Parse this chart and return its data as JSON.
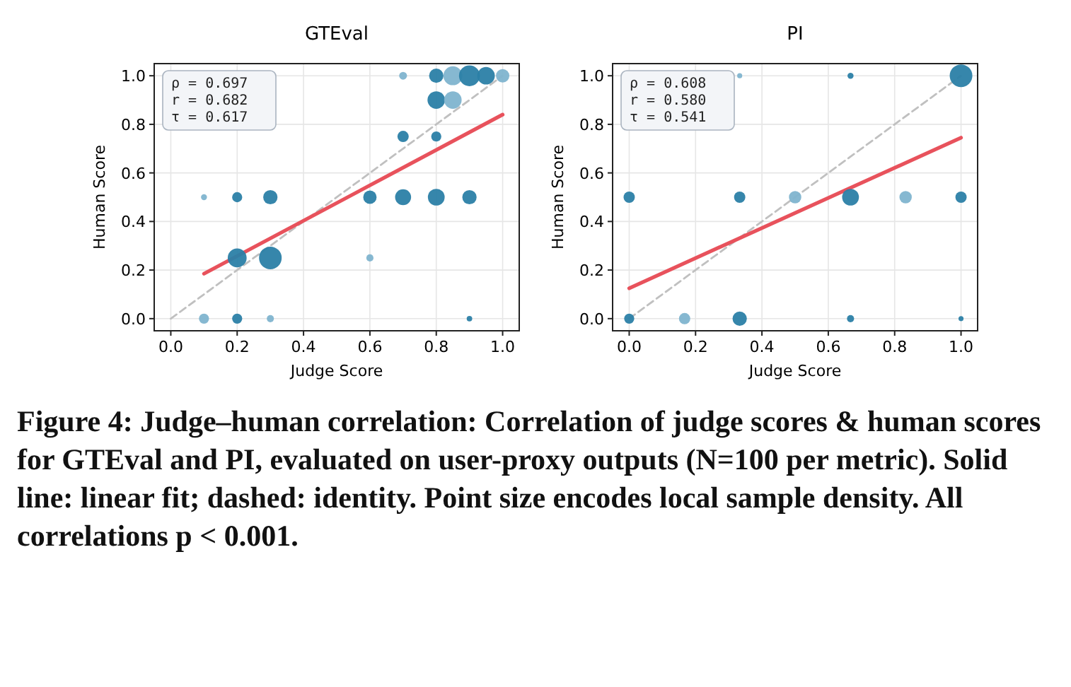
{
  "chart_data": [
    {
      "type": "bubble",
      "title": "GTEval",
      "xlabel": "Judge Score",
      "ylabel": "Human Score",
      "xlim": [
        -0.05,
        1.05
      ],
      "ylim": [
        -0.05,
        1.05
      ],
      "xticks": [
        {
          "value": 0,
          "label": "0.0"
        },
        {
          "value": 0.2,
          "label": "0.2"
        },
        {
          "value": 0.4,
          "label": "0.4"
        },
        {
          "value": 0.6,
          "label": "0.6"
        },
        {
          "value": 0.8,
          "label": "0.8"
        },
        {
          "value": 1,
          "label": "1.0"
        }
      ],
      "yticks": [
        {
          "value": 0,
          "label": "0.0"
        },
        {
          "value": 0.2,
          "label": "0.2"
        },
        {
          "value": 0.4,
          "label": "0.4"
        },
        {
          "value": 0.6,
          "label": "0.6"
        },
        {
          "value": 0.8,
          "label": "0.8"
        },
        {
          "value": 1,
          "label": "1.0"
        }
      ],
      "grid": true,
      "series": [
        {
          "type": "bubble",
          "x": [
            0.1,
            0.2,
            0.3,
            0.9,
            0.1,
            0.2,
            0.3,
            0.6,
            0.7,
            0.8,
            0.9,
            0.2,
            0.3,
            0.6,
            0.7,
            0.8,
            0.8,
            0.85,
            0.7,
            0.8,
            0.85,
            0.9,
            0.95,
            1.0
          ],
          "values": [
            0,
            0,
            0,
            0,
            0.5,
            0.5,
            0.5,
            0.5,
            0.5,
            0.5,
            0.5,
            0.25,
            0.25,
            0.25,
            0.75,
            0.75,
            0.9,
            0.9,
            1,
            1,
            1,
            1,
            1,
            1
          ],
          "sizes": [
            0.2,
            0.2,
            0.1,
            0.06,
            0.07,
            0.2,
            0.4,
            0.35,
            0.5,
            0.55,
            0.4,
            0.7,
            1,
            0.1,
            0.25,
            0.2,
            0.6,
            0.6,
            0.12,
            0.4,
            0.7,
            0.85,
            0.6,
            0.35
          ],
          "colors": [
            "#7fb4cf",
            "#2b7fa6",
            "#7fb4cf",
            "#2b7fa6",
            "#7fb4cf",
            "#2b7fa6",
            "#2b7fa6",
            "#2b7fa6",
            "#2b7fa6",
            "#2b7fa6",
            "#2b7fa6",
            "#2b7fa6",
            "#2b7fa6",
            "#7fb4cf",
            "#2b7fa6",
            "#2b7fa6",
            "#2b7fa6",
            "#7fb4cf",
            "#7fb4cf",
            "#2b7fa6",
            "#7fb4cf",
            "#2b7fa6",
            "#2b7fa6",
            "#7fb4cf"
          ]
        },
        {
          "type": "line",
          "x": [
            0.1,
            1
          ],
          "values": [
            0.185,
            0.84
          ],
          "color": "#e8525c",
          "line_style": "solid"
        },
        {
          "type": "line",
          "x": [
            0,
            1
          ],
          "values": [
            0,
            1
          ],
          "color": "#c0c0c0",
          "line_style": "dashed"
        }
      ],
      "annotations": [
        "ρ = 0.697\nr = 0.682\nτ = 0.617",
        "Figure 4: Judge–human correlation: Correlation of judge scores & human scores for GTEval and PI, evaluated on user-proxy outputs (N=100 per metric). Solid line: linear fit; dashed: identity. Point size encodes local sample density. All correlations p < 0.001."
      ]
    },
    {
      "type": "bubble",
      "title": "PI",
      "xlabel": "Judge Score",
      "ylabel": "Human Score",
      "xlim": [
        -0.05,
        1.05
      ],
      "ylim": [
        -0.05,
        1.05
      ],
      "xticks": [
        {
          "value": 0,
          "label": "0.0"
        },
        {
          "value": 0.2,
          "label": "0.2"
        },
        {
          "value": 0.4,
          "label": "0.4"
        },
        {
          "value": 0.6,
          "label": "0.6"
        },
        {
          "value": 0.8,
          "label": "0.8"
        },
        {
          "value": 1,
          "label": "1.0"
        }
      ],
      "yticks": [
        {
          "value": 0,
          "label": "0.0"
        },
        {
          "value": 0.2,
          "label": "0.2"
        },
        {
          "value": 0.4,
          "label": "0.4"
        },
        {
          "value": 0.6,
          "label": "0.6"
        },
        {
          "value": 0.8,
          "label": "0.8"
        },
        {
          "value": 1,
          "label": "1.0"
        }
      ],
      "grid": true,
      "series": [
        {
          "type": "bubble",
          "x": [
            0,
            0.167,
            0.333,
            0.667,
            1,
            0,
            0.333,
            0.5,
            0.667,
            0.833,
            1,
            0.333,
            0.667,
            1
          ],
          "values": [
            0,
            0,
            0,
            0,
            0,
            0.5,
            0.5,
            0.5,
            0.5,
            0.5,
            0.5,
            1,
            1,
            1
          ],
          "sizes": [
            0.2,
            0.25,
            0.4,
            0.1,
            0.05,
            0.25,
            0.25,
            0.3,
            0.55,
            0.3,
            0.25,
            0.05,
            0.07,
            1
          ],
          "colors": [
            "#2b7fa6",
            "#7fb4cf",
            "#2b7fa6",
            "#2b7fa6",
            "#2b7fa6",
            "#2b7fa6",
            "#2b7fa6",
            "#7fb4cf",
            "#2b7fa6",
            "#7fb4cf",
            "#2b7fa6",
            "#7fb4cf",
            "#2b7fa6",
            "#2b7fa6"
          ]
        },
        {
          "type": "line",
          "x": [
            0,
            1
          ],
          "values": [
            0.125,
            0.745
          ],
          "color": "#e8525c",
          "line_style": "solid"
        },
        {
          "type": "line",
          "x": [
            0,
            1
          ],
          "values": [
            0,
            1
          ],
          "color": "#c0c0c0",
          "line_style": "dashed"
        }
      ],
      "annotations": [
        "ρ = 0.608\nr = 0.580\nτ = 0.541"
      ]
    }
  ]
}
